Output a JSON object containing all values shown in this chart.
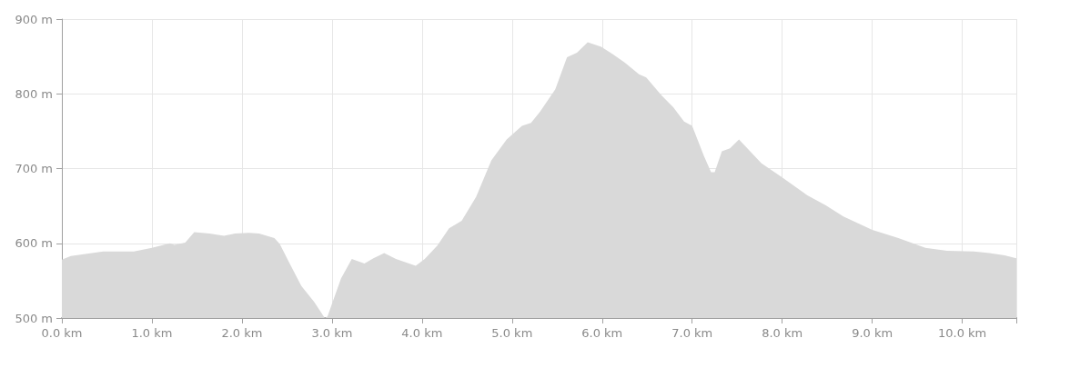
{
  "chart_data": {
    "type": "area",
    "color": "#d9d9d9",
    "x": [
      0,
      0.1,
      0.46,
      0.8,
      1.0,
      1.2,
      1.25,
      1.37,
      1.47,
      1.64,
      1.8,
      1.92,
      2.08,
      2.19,
      2.36,
      2.42,
      2.53,
      2.66,
      2.8,
      2.92,
      2.95,
      3.1,
      3.22,
      3.36,
      3.46,
      3.58,
      3.71,
      3.93,
      4.03,
      4.17,
      4.3,
      4.44,
      4.6,
      4.77,
      4.94,
      5.11,
      5.21,
      5.31,
      5.48,
      5.61,
      5.72,
      5.84,
      5.99,
      6.12,
      6.25,
      6.41,
      6.49,
      6.66,
      6.79,
      6.91,
      7.0,
      7.13,
      7.21,
      7.25,
      7.33,
      7.42,
      7.52,
      7.77,
      8.0,
      8.28,
      8.48,
      8.68,
      9.0,
      9.29,
      9.59,
      9.83,
      10.13,
      10.3,
      10.47,
      10.6
    ],
    "values": [
      578,
      583,
      589,
      589,
      594,
      600,
      598,
      601,
      615,
      613,
      610,
      613,
      614,
      613,
      607,
      599,
      573,
      543,
      522,
      500,
      502,
      553,
      579,
      573,
      580,
      587,
      579,
      570,
      579,
      597,
      620,
      630,
      662,
      711,
      739,
      757,
      761,
      776,
      806,
      849,
      855,
      869,
      863,
      853,
      842,
      826,
      822,
      798,
      782,
      763,
      757,
      717,
      695,
      695,
      723,
      727,
      739,
      707,
      688,
      664,
      651,
      636,
      618,
      607,
      594,
      590,
      589,
      587,
      584,
      580
    ],
    "xlim": [
      0,
      10.6
    ],
    "xticks": [
      {
        "value": 0,
        "label": "0.0 km"
      },
      {
        "value": 1,
        "label": "1.0 km"
      },
      {
        "value": 2,
        "label": "2.0 km"
      },
      {
        "value": 3,
        "label": "3.0 km"
      },
      {
        "value": 4,
        "label": "4.0 km"
      },
      {
        "value": 5,
        "label": "5.0 km"
      },
      {
        "value": 6,
        "label": "6.0 km"
      },
      {
        "value": 7,
        "label": "7.0 km"
      },
      {
        "value": 8,
        "label": "8.0 km"
      },
      {
        "value": 9,
        "label": "9.0 km"
      },
      {
        "value": 10,
        "label": "10.0 km"
      },
      {
        "value": 10.6,
        "label": null
      }
    ],
    "ylim": [
      500,
      900
    ],
    "yticks": [
      {
        "value": 500,
        "label": "500 m"
      },
      {
        "value": 600,
        "label": "600 m"
      },
      {
        "value": 700,
        "label": "700 m"
      },
      {
        "value": 800,
        "label": "800 m"
      },
      {
        "value": 900,
        "label": "900 m"
      }
    ],
    "grid": true,
    "marker": "none"
  }
}
